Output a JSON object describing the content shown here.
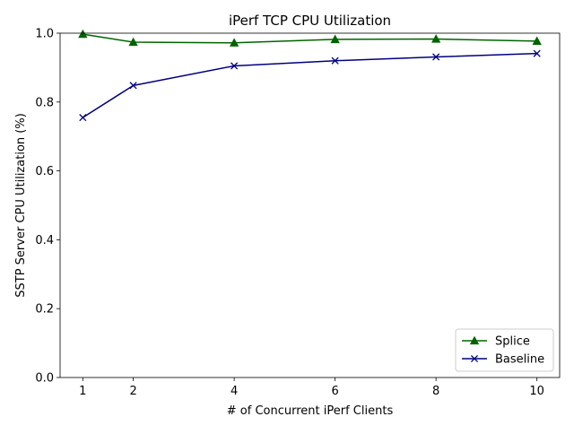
{
  "chart_data": {
    "type": "line",
    "title": "iPerf TCP CPU Utilization",
    "xlabel": "# of Concurrent iPerf Clients",
    "ylabel": "SSTP Server CPU Utilization (%)",
    "x": [
      1,
      2,
      4,
      6,
      8,
      10
    ],
    "x_ticks": [
      "1",
      "2",
      "4",
      "6",
      "8",
      "10"
    ],
    "y_ticks": [
      "0.0",
      "0.2",
      "0.4",
      "0.6",
      "0.8",
      "1.0"
    ],
    "xlim": [
      0.55,
      10.45
    ],
    "ylim": [
      0,
      1.0
    ],
    "grid": false,
    "legend_position": "lower right",
    "series": [
      {
        "name": "Splice",
        "values": [
          0.997,
          0.974,
          0.972,
          0.982,
          0.983,
          0.977
        ],
        "color": "#006400",
        "marker": "triangle"
      },
      {
        "name": "Baseline",
        "values": [
          0.755,
          0.848,
          0.905,
          0.92,
          0.931,
          0.941
        ],
        "color": "#000080",
        "marker": "x"
      }
    ]
  }
}
